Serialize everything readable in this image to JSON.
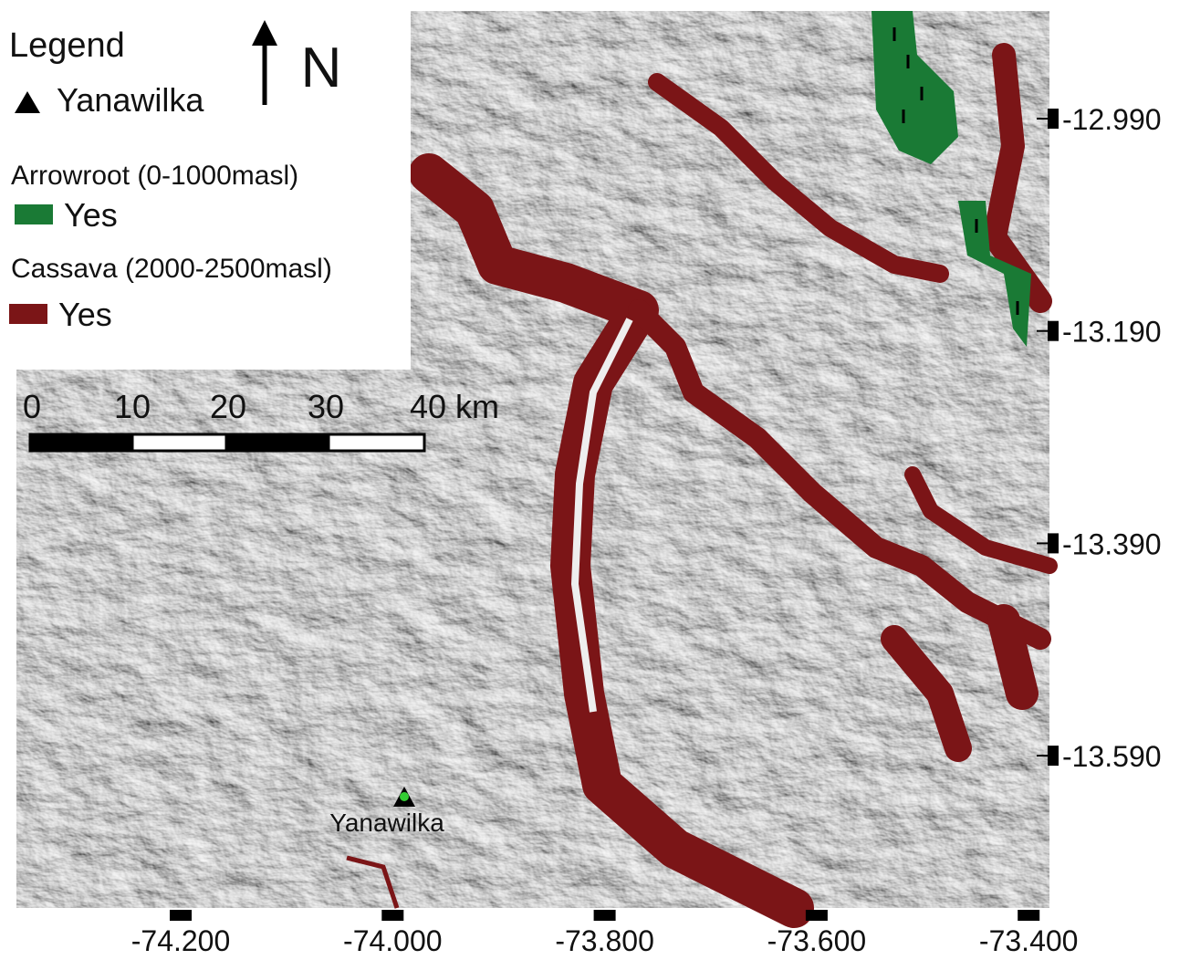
{
  "legend": {
    "title": "Legend",
    "site": "Yanawilka",
    "groups": [
      {
        "title": "Arrowroot (0-1000masl)",
        "item": "Yes"
      },
      {
        "title": "Cassava (2000-2500masl)",
        "item": "Yes"
      }
    ]
  },
  "north": "N",
  "scale_bar": {
    "labels": [
      "0",
      "10",
      "20",
      "30",
      "40 km"
    ]
  },
  "latitude_labels": [
    "-12.990",
    "-13.190",
    "-13.390",
    "-13.590"
  ],
  "longitude_labels": [
    "-74.200",
    "-74.000",
    "-73.800",
    "-73.600",
    "-73.400"
  ],
  "site_label": "Yanawilka"
}
